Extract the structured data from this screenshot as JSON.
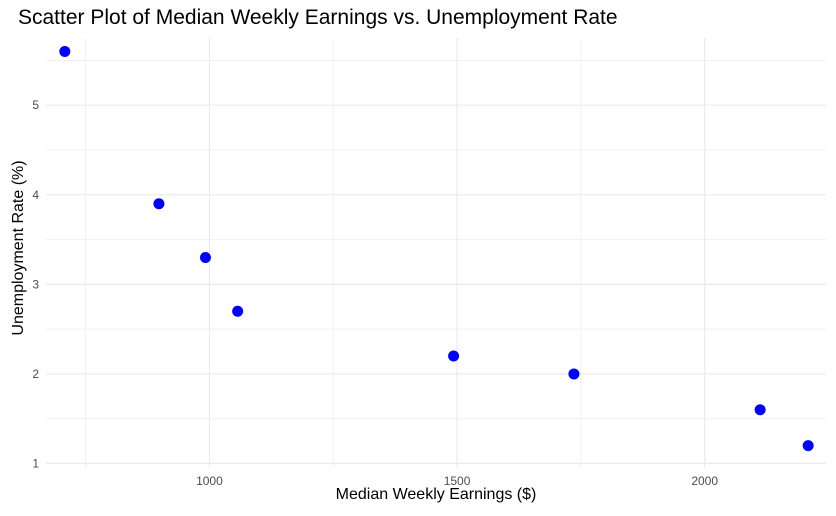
{
  "chart_data": {
    "type": "scatter",
    "title": "Scatter Plot of Median Weekly Earnings vs. Unemployment Rate",
    "xlabel": "Median Weekly Earnings ($)",
    "ylabel": "Unemployment Rate (%)",
    "xlim": [
      670,
      2245
    ],
    "ylim": [
      0.95,
      5.75
    ],
    "x_ticks": [
      1000,
      1500,
      2000
    ],
    "y_ticks": [
      1,
      2,
      3,
      4,
      5
    ],
    "x_minor_ticks": [
      750,
      1250,
      1750
    ],
    "y_minor_ticks": [
      1.5,
      2.5,
      3.5,
      4.5,
      5.5
    ],
    "grid": true,
    "legend": "none",
    "point_color": "#0000ff",
    "grid_color": "#ebebeb",
    "points": [
      {
        "x": 708,
        "y": 5.6
      },
      {
        "x": 898,
        "y": 3.9
      },
      {
        "x": 992,
        "y": 3.3
      },
      {
        "x": 1057,
        "y": 2.7
      },
      {
        "x": 1493,
        "y": 2.2
      },
      {
        "x": 1736,
        "y": 2.0
      },
      {
        "x": 2112,
        "y": 1.6
      },
      {
        "x": 2209,
        "y": 1.2
      }
    ]
  }
}
